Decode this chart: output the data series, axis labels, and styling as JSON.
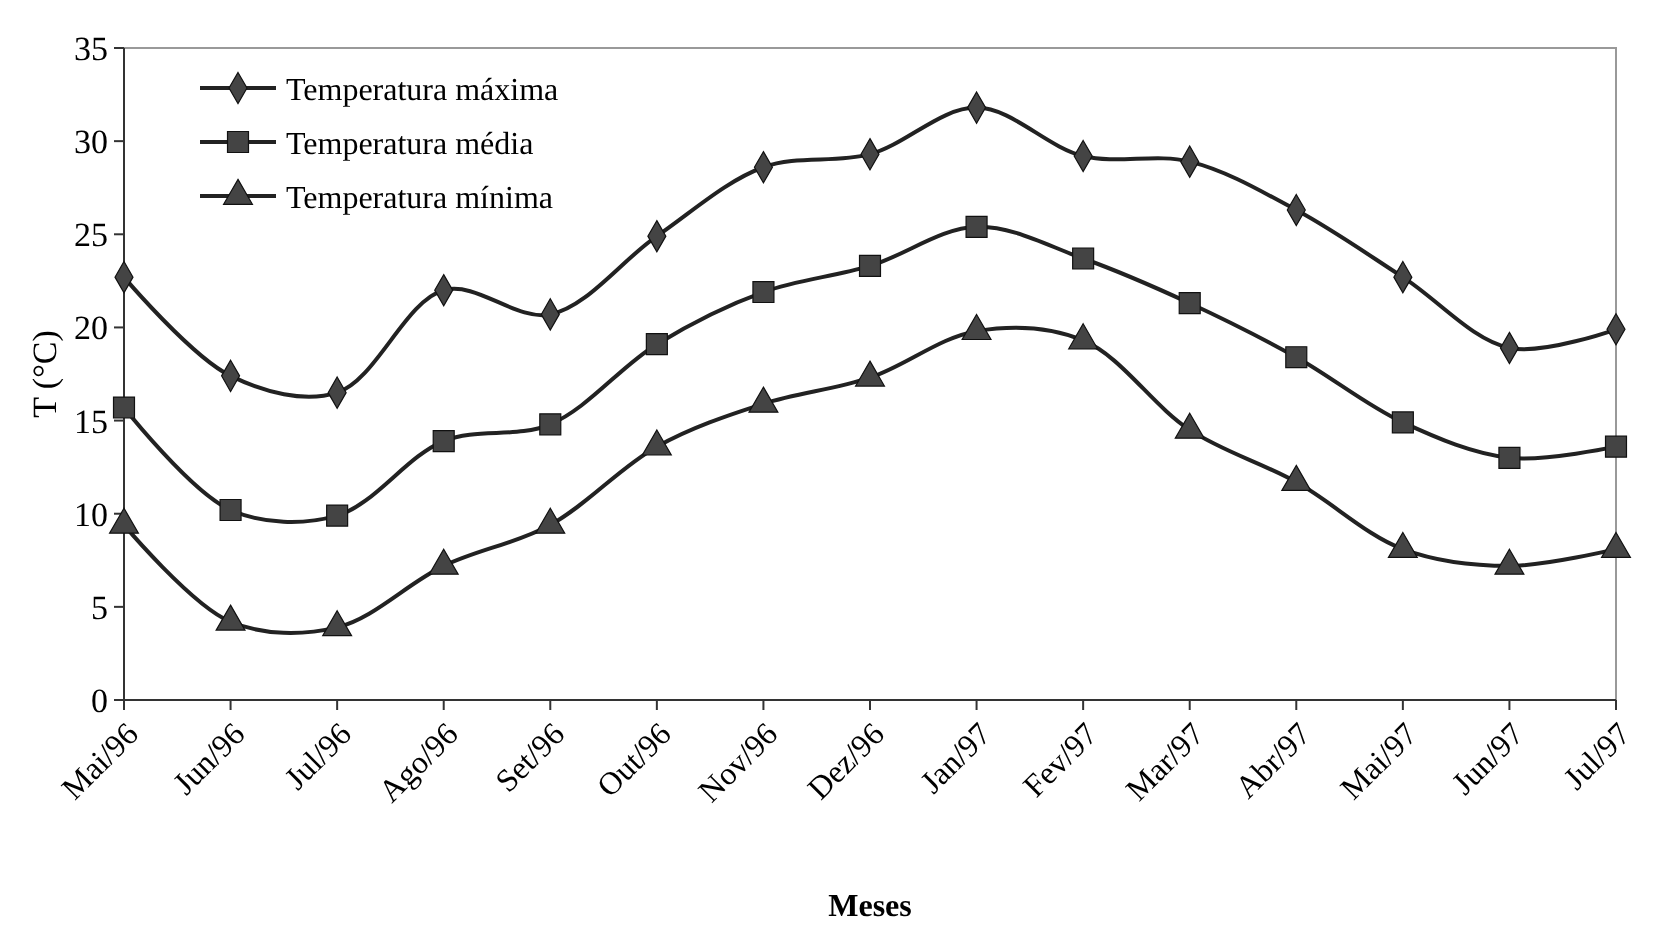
{
  "chart_data": {
    "type": "line",
    "xlabel": "Meses",
    "ylabel": "T (°C)",
    "categories": [
      "Mai/96",
      "Jun/96",
      "Jul/96",
      "Ago/96",
      "Set/96",
      "Out/96",
      "Nov/96",
      "Dez/96",
      "Jan/97",
      "Fev/97",
      "Mar/97",
      "Abr/97",
      "Mai/97",
      "Jun/97",
      "Jul/97"
    ],
    "series": [
      {
        "name": "Temperatura máxima",
        "color": "#222222",
        "marker": "diamond",
        "values": [
          22.7,
          17.4,
          16.5,
          22,
          20.7,
          24.9,
          28.6,
          29.3,
          31.8,
          29.2,
          28.9,
          26.3,
          22.7,
          18.9,
          19.9
        ]
      },
      {
        "name": "Temperatura média",
        "color": "#222222",
        "marker": "square",
        "values": [
          15.7,
          10.2,
          9.9,
          13.9,
          14.8,
          19.1,
          21.9,
          23.3,
          25.4,
          23.7,
          21.3,
          18.4,
          14.9,
          13.0,
          13.6
        ]
      },
      {
        "name": "Temperatura mínima",
        "color": "#222222",
        "marker": "triangle",
        "values": [
          9.4,
          4.2,
          3.9,
          7.2,
          9.4,
          13.6,
          15.9,
          17.3,
          19.8,
          19.3,
          14.5,
          11.7,
          8.1,
          7.2,
          8.1
        ]
      }
    ],
    "ylim": [
      0,
      35
    ],
    "yticks": [
      0,
      5,
      10,
      15,
      20,
      25,
      30,
      35
    ],
    "grid": false,
    "legend": "top left",
    "line_style": "solid"
  }
}
